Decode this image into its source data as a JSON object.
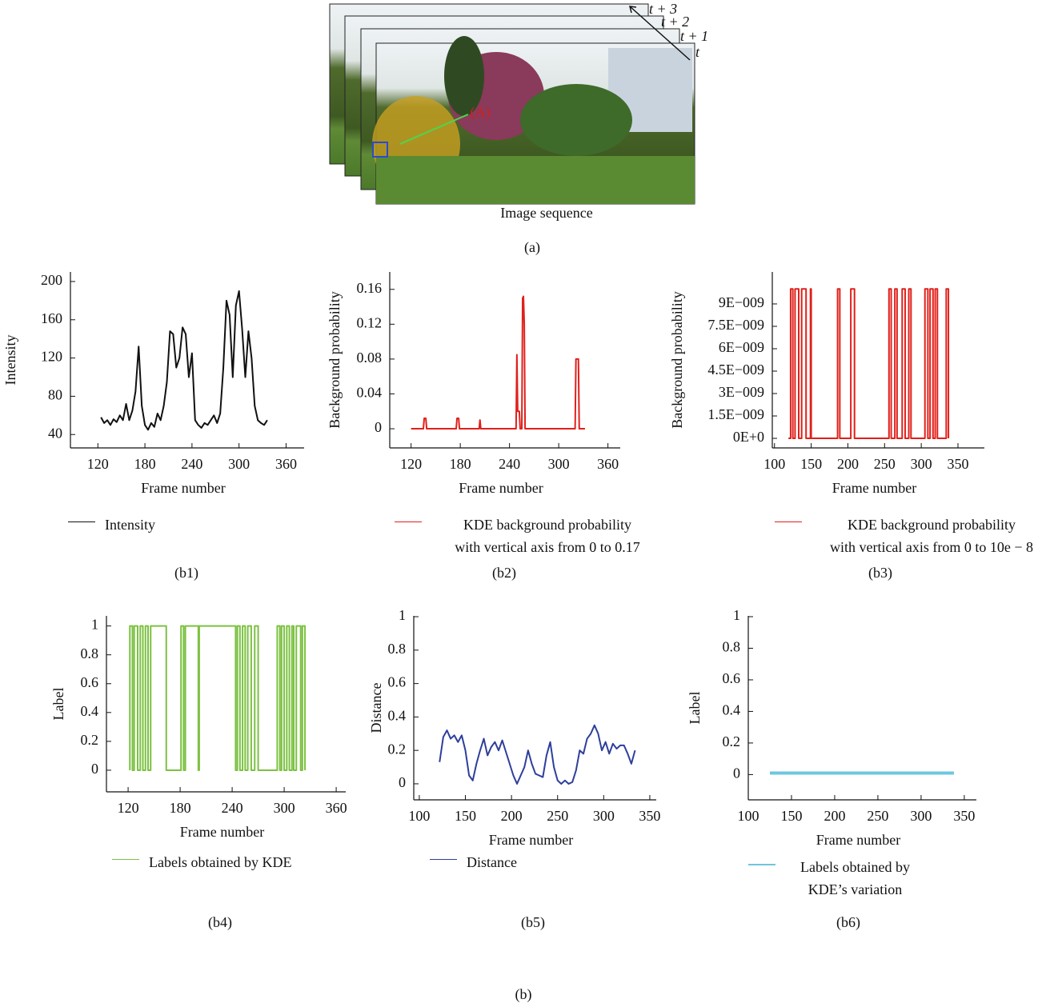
{
  "figure": {
    "frame_labels": [
      "t + 3",
      "t + 2",
      "t + 1",
      "t"
    ],
    "point_label": "(A)",
    "image_label": "Image sequence",
    "caption_a": "(a)",
    "caption_b": "(b)"
  },
  "chart_data": [
    {
      "type": "line",
      "caption": "(b1)",
      "xlabel": "Frame number",
      "ylabel": "Intensity",
      "xlim": [
        85,
        383
      ],
      "ylim": [
        26,
        210
      ],
      "xticks": [
        120,
        180,
        240,
        300,
        360
      ],
      "yticks": [
        40,
        80,
        120,
        160,
        200
      ],
      "series": [
        {
          "name": "Intensity",
          "color": "#111111",
          "x": [
            124,
            128,
            132,
            136,
            140,
            144,
            148,
            152,
            156,
            160,
            164,
            168,
            172,
            176,
            180,
            184,
            188,
            192,
            196,
            200,
            204,
            208,
            212,
            216,
            220,
            224,
            228,
            232,
            236,
            240,
            244,
            248,
            252,
            256,
            260,
            264,
            268,
            272,
            276,
            280,
            284,
            288,
            292,
            296,
            300,
            304,
            308,
            312,
            316,
            320,
            324,
            328,
            332,
            336
          ],
          "values": [
            58,
            52,
            55,
            50,
            56,
            53,
            60,
            55,
            72,
            55,
            65,
            85,
            132,
            70,
            50,
            45,
            52,
            48,
            62,
            55,
            70,
            95,
            148,
            145,
            110,
            120,
            152,
            145,
            100,
            125,
            55,
            50,
            47,
            52,
            50,
            55,
            60,
            52,
            62,
            110,
            180,
            165,
            100,
            175,
            190,
            150,
            100,
            148,
            120,
            70,
            55,
            52,
            50,
            55
          ]
        }
      ]
    },
    {
      "type": "line",
      "caption": "(b2)",
      "xlabel": "Frame number",
      "ylabel": "Background probability",
      "note": "with vertical axis from 0 to 0.17",
      "xlim": [
        94,
        375
      ],
      "ylim": [
        -0.022,
        0.18
      ],
      "xticks": [
        120,
        180,
        240,
        300,
        360
      ],
      "yticks": [
        0,
        0.04,
        0.08,
        0.12,
        0.16
      ],
      "series": [
        {
          "name": "KDE background probability",
          "color": "#e0201b",
          "x": [
            120,
            135,
            136,
            138,
            139,
            175,
            176,
            178,
            179,
            203,
            204,
            205,
            248,
            249,
            250,
            252,
            253,
            255,
            256,
            257,
            258,
            259,
            320,
            321,
            324,
            325,
            332
          ],
          "values": [
            0,
            0,
            0.012,
            0.012,
            0,
            0,
            0.012,
            0.012,
            0,
            0,
            0.01,
            0,
            0,
            0.085,
            0.02,
            0.02,
            0,
            0,
            0.15,
            0.152,
            0.12,
            0,
            0,
            0.08,
            0.08,
            0,
            0
          ]
        }
      ]
    },
    {
      "type": "line",
      "caption": "(b3)",
      "xlabel": "Frame number",
      "ylabel": "Background probability",
      "note": "with vertical axis from 0 to 10e − 8",
      "xlim": [
        97,
        386
      ],
      "ylim": [
        -6.4e-10,
        1.114e-08
      ],
      "xticks": [
        100,
        150,
        200,
        250,
        300,
        350
      ],
      "yticks": [
        {
          "value": 0,
          "label": "0E+0"
        },
        {
          "value": 1.5e-09,
          "label": "1.5E−009"
        },
        {
          "value": 3e-09,
          "label": "3E−009"
        },
        {
          "value": 4.5e-09,
          "label": "4.5E−009"
        },
        {
          "value": 6e-09,
          "label": "6E−009"
        },
        {
          "value": 7.5e-09,
          "label": "7.5E−009"
        },
        {
          "value": 9e-09,
          "label": "9E−009"
        }
      ],
      "series": [
        {
          "name": "KDE background probability",
          "color": "#e0201b",
          "x": [
            119,
            122,
            122,
            125,
            125,
            128,
            128,
            133,
            133,
            137,
            137,
            143,
            143,
            149,
            149,
            150,
            150,
            186,
            186,
            189,
            189,
            204,
            204,
            209,
            209,
            256,
            256,
            259,
            259,
            264,
            264,
            267,
            267,
            274,
            274,
            278,
            278,
            283,
            283,
            286,
            286,
            305,
            305,
            309,
            309,
            312,
            312,
            316,
            316,
            319,
            319,
            322,
            322,
            334,
            334,
            337,
            337
          ],
          "values": [
            0,
            0,
            1e-08,
            1e-08,
            0,
            0,
            1e-08,
            1e-08,
            0,
            0,
            1e-08,
            1e-08,
            0,
            0,
            1e-08,
            1e-08,
            0,
            0,
            1e-08,
            1e-08,
            0,
            0,
            1e-08,
            1e-08,
            0,
            0,
            1e-08,
            1e-08,
            0,
            0,
            1e-08,
            1e-08,
            0,
            0,
            1e-08,
            1e-08,
            0,
            0,
            1e-08,
            1e-08,
            0,
            0,
            1e-08,
            1e-08,
            0,
            0,
            1e-08,
            1e-08,
            0,
            0,
            1e-08,
            1e-08,
            0,
            0,
            1e-08,
            1e-08,
            0
          ]
        }
      ]
    },
    {
      "type": "line",
      "caption": "(b4)",
      "xlabel": "Frame number",
      "ylabel": "Label",
      "xlim": [
        95,
        371
      ],
      "ylim": [
        -0.15,
        1.07
      ],
      "xticks": [
        120,
        180,
        240,
        300,
        360
      ],
      "yticks": [
        0,
        0.2,
        0.4,
        0.6,
        0.8,
        1
      ],
      "series": [
        {
          "name": "Labels obtained by KDE",
          "color": "#7cc142",
          "x": [
            122,
            122,
            125,
            125,
            127,
            127,
            131,
            131,
            134,
            134,
            137,
            137,
            140,
            140,
            143,
            143,
            146,
            146,
            164,
            164,
            181,
            181,
            184,
            184,
            186,
            186,
            201,
            201,
            202,
            202,
            244,
            244,
            246,
            246,
            249,
            249,
            252,
            252,
            255,
            255,
            258,
            258,
            262,
            262,
            266,
            266,
            270,
            270,
            292,
            292,
            295,
            295,
            297,
            297,
            300,
            300,
            303,
            303,
            306,
            306,
            309,
            309,
            311,
            311,
            314,
            314,
            319,
            319,
            321,
            321,
            324,
            324
          ],
          "values": [
            0,
            1,
            1,
            0,
            0,
            1,
            1,
            0,
            0,
            1,
            1,
            0,
            0,
            1,
            1,
            0,
            0,
            1,
            1,
            0,
            0,
            1,
            1,
            0,
            0,
            1,
            1,
            0,
            0,
            1,
            1,
            0,
            0,
            1,
            1,
            0,
            0,
            1,
            1,
            0,
            0,
            1,
            1,
            0,
            0,
            1,
            1,
            0,
            0,
            1,
            1,
            0,
            0,
            1,
            1,
            0,
            0,
            1,
            1,
            0,
            0,
            1,
            1,
            0,
            0,
            1,
            1,
            0,
            0,
            1,
            1,
            0
          ]
        }
      ]
    },
    {
      "type": "line",
      "caption": "(b5)",
      "xlabel": "Frame number",
      "ylabel": "Distance",
      "xlim": [
        94,
        357
      ],
      "ylim": [
        -0.096,
        1.005
      ],
      "xticks": [
        100,
        150,
        200,
        250,
        300,
        350
      ],
      "yticks": [
        0,
        0.2,
        0.4,
        0.6,
        0.8,
        1
      ],
      "series": [
        {
          "name": "Distance",
          "color": "#2e3f9a",
          "x": [
            122,
            126,
            130,
            134,
            138,
            142,
            146,
            150,
            154,
            158,
            162,
            166,
            170,
            174,
            178,
            182,
            186,
            190,
            194,
            198,
            202,
            206,
            210,
            214,
            218,
            222,
            226,
            230,
            234,
            238,
            242,
            246,
            250,
            254,
            258,
            262,
            266,
            270,
            274,
            278,
            282,
            286,
            290,
            294,
            298,
            302,
            306,
            310,
            314,
            318,
            322,
            326,
            330,
            334
          ],
          "values": [
            0.13,
            0.28,
            0.32,
            0.27,
            0.29,
            0.25,
            0.29,
            0.2,
            0.05,
            0.02,
            0.12,
            0.2,
            0.27,
            0.17,
            0.22,
            0.25,
            0.2,
            0.26,
            0.19,
            0.12,
            0.05,
            0,
            0.05,
            0.1,
            0.2,
            0.12,
            0.06,
            0.05,
            0.04,
            0.17,
            0.25,
            0.1,
            0.02,
            0,
            0.02,
            0,
            0.01,
            0.08,
            0.2,
            0.18,
            0.27,
            0.3,
            0.35,
            0.3,
            0.2,
            0.25,
            0.18,
            0.24,
            0.21,
            0.23,
            0.23,
            0.18,
            0.12,
            0.2
          ]
        }
      ]
    },
    {
      "type": "line",
      "caption": "(b6)",
      "xlabel": "Frame number",
      "ylabel": "Label",
      "xlim": [
        100,
        364
      ],
      "ylim": [
        -0.16,
        1.005
      ],
      "xticks": [
        100,
        150,
        200,
        250,
        300,
        350
      ],
      "yticks": [
        0,
        0.2,
        0.4,
        0.6,
        0.8,
        1
      ],
      "series": [
        {
          "name": "Labels obtained by KDE’s variation",
          "color": "#6ec6e0",
          "x": [
            125,
            338
          ],
          "values": [
            0.01,
            0.01
          ]
        }
      ]
    }
  ]
}
